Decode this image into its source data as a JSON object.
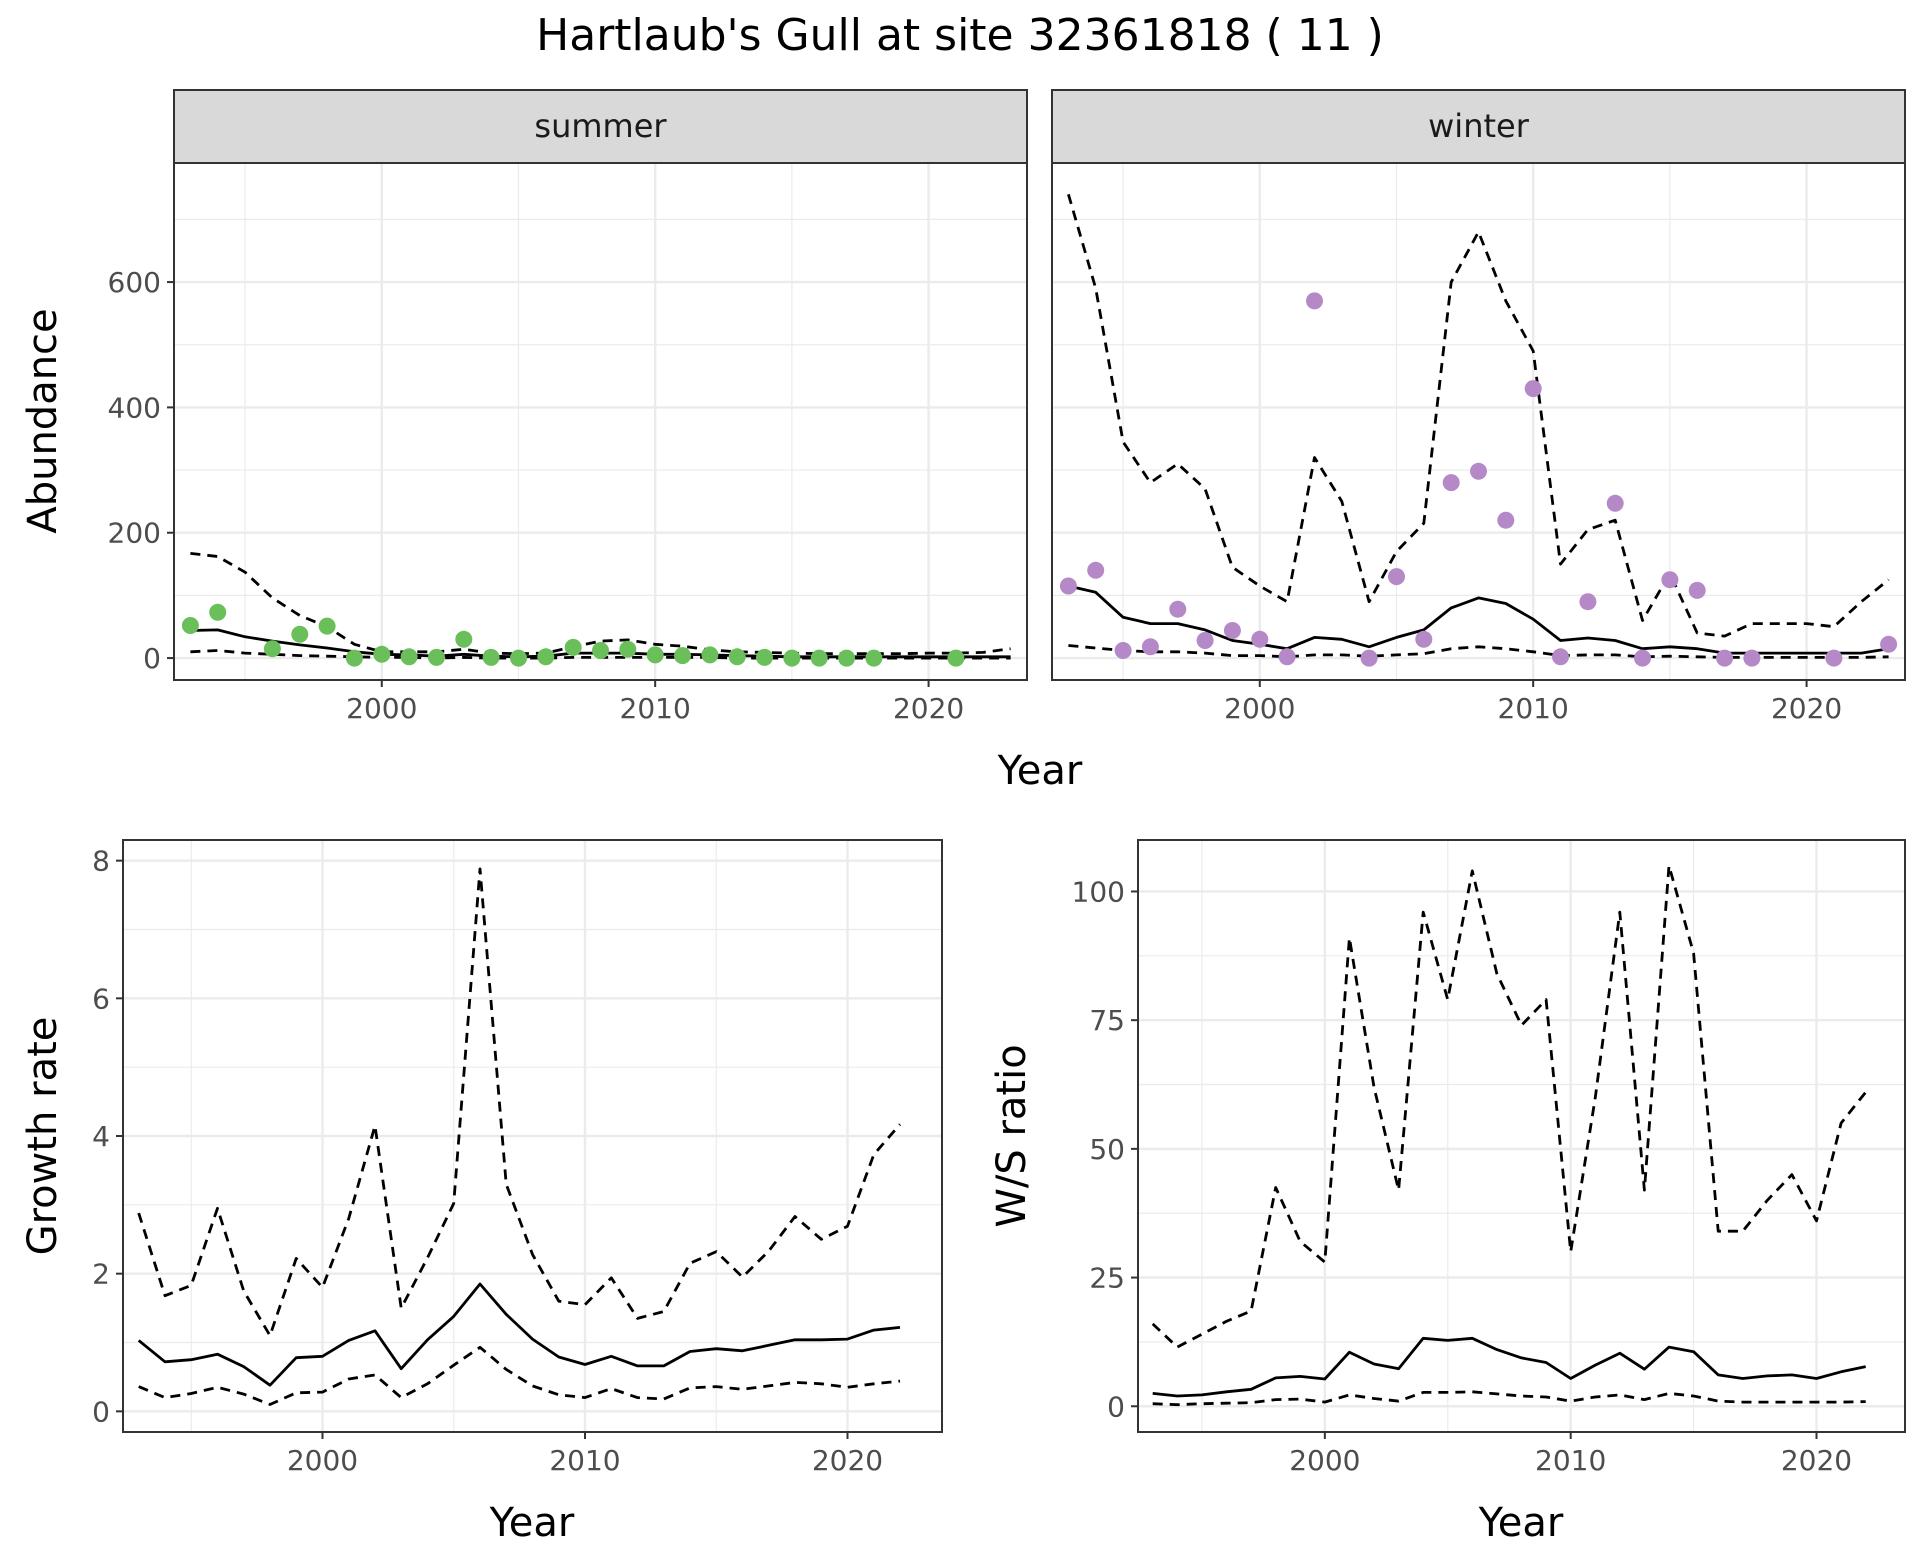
{
  "title": "Hartlaub's Gull at site 32361818 ( 11 )",
  "colors": {
    "summer_points": "#6abf5a",
    "winter_points": "#b589c7",
    "line": "#000000",
    "grid": "#ebebeb",
    "strip_bg": "#d9d9d9"
  },
  "chart_data": [
    {
      "type": "scatter",
      "facet": "summer",
      "strip_label": "summer",
      "xlabel": "Year",
      "ylabel": "Abundance",
      "xlim": [
        1992.4,
        2023.6
      ],
      "ylim": [
        -35,
        790
      ],
      "x_ticks": [
        2000,
        2010,
        2020
      ],
      "y_ticks": [
        0,
        200,
        400,
        600
      ],
      "grid": true,
      "points": {
        "x": [
          1993,
          1994,
          1996,
          1997,
          1998,
          1999,
          2000,
          2001,
          2002,
          2003,
          2004,
          2005,
          2006,
          2007,
          2008,
          2009,
          2010,
          2011,
          2012,
          2013,
          2014,
          2015,
          2016,
          2017,
          2018,
          2021
        ],
        "y": [
          52,
          73,
          15,
          38,
          51,
          0,
          6,
          2,
          1,
          30,
          1,
          0,
          2,
          17,
          12,
          14,
          5,
          4,
          5,
          2,
          1,
          0,
          0,
          0,
          0,
          0
        ]
      },
      "fit": {
        "x": [
          1993,
          1994,
          1995,
          1996,
          1997,
          1998,
          1999,
          2000,
          2001,
          2002,
          2003,
          2004,
          2005,
          2006,
          2007,
          2008,
          2009,
          2010,
          2011,
          2012,
          2013,
          2014,
          2015,
          2016,
          2017,
          2018,
          2019,
          2020,
          2021,
          2022,
          2023
        ],
        "y": [
          44,
          45,
          34,
          27,
          21,
          16,
          10,
          6,
          5,
          3,
          6,
          3,
          2,
          3,
          8,
          8,
          8,
          6,
          6,
          5,
          4,
          3,
          2,
          2,
          2,
          2,
          2,
          2,
          2,
          2,
          2
        ]
      },
      "upper": {
        "x": [
          1993,
          1994,
          1995,
          1996,
          1997,
          1998,
          1999,
          2000,
          2001,
          2002,
          2003,
          2004,
          2005,
          2006,
          2007,
          2008,
          2009,
          2010,
          2011,
          2012,
          2013,
          2014,
          2015,
          2016,
          2017,
          2018,
          2019,
          2020,
          2021,
          2022,
          2023
        ],
        "y": [
          167,
          162,
          137,
          96,
          68,
          50,
          22,
          10,
          10,
          10,
          14,
          8,
          7,
          8,
          18,
          27,
          29,
          22,
          19,
          13,
          10,
          9,
          8,
          7,
          7,
          7,
          7,
          8,
          8,
          9,
          15
        ]
      },
      "lower": {
        "x": [
          1993,
          1994,
          1995,
          1996,
          1997,
          1998,
          1999,
          2000,
          2001,
          2002,
          2003,
          2004,
          2005,
          2006,
          2007,
          2008,
          2009,
          2010,
          2011,
          2012,
          2013,
          2014,
          2015,
          2016,
          2017,
          2018,
          2019,
          2020,
          2021,
          2022,
          2023
        ],
        "y": [
          10,
          12,
          8,
          6,
          4,
          3,
          2,
          1,
          1,
          0,
          1,
          0,
          0,
          0,
          1,
          1,
          1,
          1,
          1,
          1,
          0,
          0,
          0,
          0,
          0,
          0,
          0,
          0,
          0,
          0,
          0
        ]
      }
    },
    {
      "type": "scatter",
      "facet": "winter",
      "strip_label": "winter",
      "xlabel": "Year",
      "ylabel": "Abundance",
      "xlim": [
        1992.4,
        2023.6
      ],
      "ylim": [
        -35,
        790
      ],
      "x_ticks": [
        2000,
        2010,
        2020
      ],
      "y_ticks": [
        0,
        200,
        400,
        600
      ],
      "grid": true,
      "points": {
        "x": [
          1993,
          1994,
          1995,
          1996,
          1997,
          1998,
          1999,
          2000,
          2001,
          2002,
          2004,
          2005,
          2006,
          2007,
          2008,
          2009,
          2010,
          2011,
          2012,
          2013,
          2014,
          2015,
          2016,
          2017,
          2018,
          2021,
          2023
        ],
        "y": [
          115,
          140,
          12,
          18,
          78,
          28,
          44,
          30,
          2,
          570,
          0,
          130,
          30,
          280,
          298,
          220,
          430,
          2,
          90,
          247,
          0,
          125,
          108,
          0,
          0,
          0,
          22
        ]
      },
      "fit": {
        "x": [
          1993,
          1994,
          1995,
          1996,
          1997,
          1998,
          1999,
          2000,
          2001,
          2002,
          2003,
          2004,
          2005,
          2006,
          2007,
          2008,
          2009,
          2010,
          2011,
          2012,
          2013,
          2014,
          2015,
          2016,
          2017,
          2018,
          2019,
          2020,
          2021,
          2022,
          2023
        ],
        "y": [
          115,
          105,
          65,
          55,
          55,
          45,
          28,
          22,
          15,
          33,
          30,
          18,
          33,
          45,
          80,
          96,
          87,
          62,
          28,
          32,
          28,
          15,
          18,
          15,
          8,
          8,
          8,
          8,
          8,
          8,
          15
        ]
      },
      "upper": {
        "x": [
          1993,
          1994,
          1995,
          1996,
          1997,
          1998,
          1999,
          2000,
          2001,
          2002,
          2003,
          2004,
          2005,
          2006,
          2007,
          2008,
          2009,
          2010,
          2011,
          2012,
          2013,
          2014,
          2015,
          2016,
          2017,
          2018,
          2019,
          2020,
          2021,
          2022,
          2023
        ],
        "y": [
          740,
          590,
          345,
          280,
          310,
          270,
          145,
          115,
          90,
          320,
          250,
          90,
          170,
          215,
          600,
          680,
          570,
          490,
          150,
          205,
          220,
          60,
          135,
          40,
          35,
          55,
          55,
          55,
          50,
          90,
          125
        ]
      },
      "lower": {
        "x": [
          1993,
          1994,
          1995,
          1996,
          1997,
          1998,
          1999,
          2000,
          2001,
          2002,
          2003,
          2004,
          2005,
          2006,
          2007,
          2008,
          2009,
          2010,
          2011,
          2012,
          2013,
          2014,
          2015,
          2016,
          2017,
          2018,
          2019,
          2020,
          2021,
          2022,
          2023
        ],
        "y": [
          20,
          16,
          12,
          10,
          10,
          8,
          4,
          4,
          2,
          5,
          5,
          3,
          5,
          7,
          15,
          18,
          15,
          10,
          4,
          5,
          5,
          2,
          3,
          2,
          1,
          1,
          1,
          1,
          1,
          1,
          2
        ]
      }
    },
    {
      "type": "line",
      "xlabel": "Year",
      "ylabel": "Growth rate",
      "xlim": [
        1992.4,
        2023.6
      ],
      "ylim": [
        -0.3,
        8.3
      ],
      "x_ticks": [
        2000,
        2010,
        2020
      ],
      "y_ticks": [
        0,
        2,
        4,
        6,
        8
      ],
      "grid": true,
      "fit": {
        "x": [
          1993,
          1994,
          1995,
          1996,
          1997,
          1998,
          1999,
          2000,
          2001,
          2002,
          2003,
          2004,
          2005,
          2006,
          2007,
          2008,
          2009,
          2010,
          2011,
          2012,
          2013,
          2014,
          2015,
          2016,
          2017,
          2018,
          2019,
          2020,
          2021,
          2022
        ],
        "y": [
          1.03,
          0.72,
          0.75,
          0.83,
          0.65,
          0.38,
          0.78,
          0.8,
          1.03,
          1.17,
          0.62,
          1.04,
          1.38,
          1.85,
          1.41,
          1.05,
          0.79,
          0.68,
          0.8,
          0.66,
          0.66,
          0.87,
          0.91,
          0.88,
          0.96,
          1.04,
          1.04,
          1.05,
          1.18,
          1.22
        ]
      },
      "upper": {
        "x": [
          1993,
          1994,
          1995,
          1996,
          1997,
          1998,
          1999,
          2000,
          2001,
          2002,
          2003,
          2004,
          2005,
          2006,
          2007,
          2008,
          2009,
          2010,
          2011,
          2012,
          2013,
          2014,
          2015,
          2016,
          2017,
          2018,
          2019,
          2020,
          2021,
          2022
        ],
        "y": [
          2.88,
          1.68,
          1.83,
          2.95,
          1.75,
          1.1,
          2.22,
          1.8,
          2.8,
          4.15,
          1.5,
          2.23,
          3.02,
          7.88,
          3.3,
          2.28,
          1.6,
          1.55,
          1.94,
          1.35,
          1.45,
          2.15,
          2.32,
          1.95,
          2.33,
          2.83,
          2.5,
          2.69,
          3.73,
          4.17
        ]
      },
      "lower": {
        "x": [
          1993,
          1994,
          1995,
          1996,
          1997,
          1998,
          1999,
          2000,
          2001,
          2002,
          2003,
          2004,
          2005,
          2006,
          2007,
          2008,
          2009,
          2010,
          2011,
          2012,
          2013,
          2014,
          2015,
          2016,
          2017,
          2018,
          2019,
          2020,
          2021,
          2022
        ],
        "y": [
          0.36,
          0.2,
          0.26,
          0.35,
          0.25,
          0.1,
          0.27,
          0.28,
          0.47,
          0.53,
          0.2,
          0.4,
          0.67,
          0.93,
          0.61,
          0.37,
          0.24,
          0.2,
          0.33,
          0.2,
          0.18,
          0.34,
          0.36,
          0.32,
          0.37,
          0.42,
          0.4,
          0.35,
          0.4,
          0.44
        ]
      }
    },
    {
      "type": "line",
      "xlabel": "Year",
      "ylabel": "W/S ratio",
      "xlim": [
        1992.4,
        2023.6
      ],
      "ylim": [
        -5,
        110
      ],
      "x_ticks": [
        2000,
        2010,
        2020
      ],
      "y_ticks": [
        0,
        25,
        50,
        75,
        100
      ],
      "grid": true,
      "fit": {
        "x": [
          1993,
          1994,
          1995,
          1996,
          1997,
          1998,
          1999,
          2000,
          2001,
          2002,
          2003,
          2004,
          2005,
          2006,
          2007,
          2008,
          2009,
          2010,
          2011,
          2012,
          2013,
          2014,
          2015,
          2016,
          2017,
          2018,
          2019,
          2020,
          2021,
          2022
        ],
        "y": [
          2.5,
          2.0,
          2.2,
          2.8,
          3.3,
          5.5,
          5.8,
          5.3,
          10.5,
          8.2,
          7.3,
          13.2,
          12.8,
          13.2,
          11.0,
          9.4,
          8.5,
          5.4,
          8.0,
          10.3,
          7.2,
          11.5,
          10.6,
          6.1,
          5.4,
          5.9,
          6.1,
          5.4,
          6.7,
          7.7
        ]
      },
      "upper": {
        "x": [
          1993,
          1994,
          1995,
          1996,
          1997,
          1998,
          1999,
          2000,
          2001,
          2002,
          2003,
          2004,
          2005,
          2006,
          2007,
          2008,
          2009,
          2010,
          2011,
          2012,
          2013,
          2014,
          2015,
          2016,
          2017,
          2018,
          2019,
          2020,
          2021,
          2022
        ],
        "y": [
          16,
          11.5,
          14,
          16.5,
          18.5,
          42.5,
          32,
          28,
          91,
          62,
          42,
          96,
          79,
          104,
          84,
          74,
          79,
          30,
          60,
          96,
          42,
          105,
          88,
          34,
          34,
          40,
          45,
          36,
          55,
          61
        ]
      },
      "lower": {
        "x": [
          1993,
          1994,
          1995,
          1996,
          1997,
          1998,
          1999,
          2000,
          2001,
          2002,
          2003,
          2004,
          2005,
          2006,
          2007,
          2008,
          2009,
          2010,
          2011,
          2012,
          2013,
          2014,
          2015,
          2016,
          2017,
          2018,
          2019,
          2020,
          2021,
          2022
        ],
        "y": [
          0.5,
          0.3,
          0.5,
          0.6,
          0.7,
          1.3,
          1.4,
          0.8,
          2.2,
          1.5,
          1.0,
          2.7,
          2.7,
          2.8,
          2.4,
          2.0,
          1.8,
          1.0,
          1.8,
          2.2,
          1.3,
          2.5,
          2.0,
          1.0,
          0.8,
          0.8,
          0.8,
          0.8,
          0.8,
          0.9
        ]
      }
    }
  ]
}
